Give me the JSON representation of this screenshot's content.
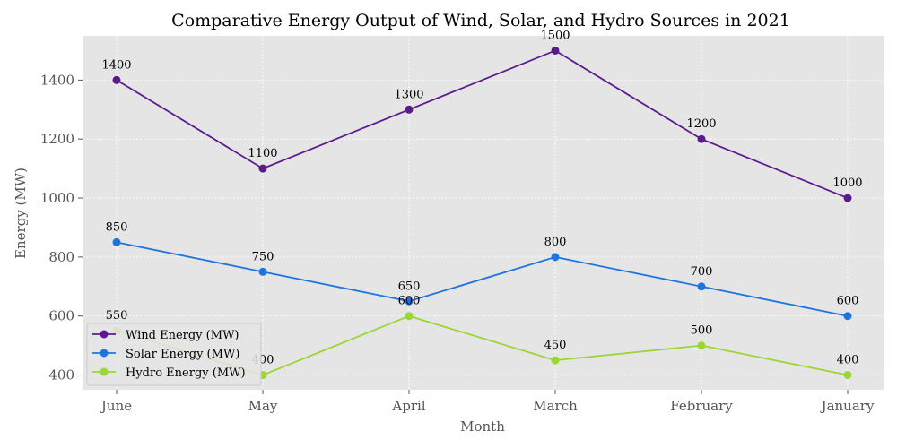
{
  "chart_data": {
    "type": "line",
    "title": "Comparative Energy Output of Wind, Solar, and Hydro Sources in 2021",
    "xlabel": "Month",
    "ylabel": "Energy (MW)",
    "categories": [
      "June",
      "May",
      "April",
      "March",
      "February",
      "January"
    ],
    "ylim": [
      350,
      1550
    ],
    "yticks": [
      400,
      600,
      800,
      1000,
      1200,
      1400
    ],
    "grid": true,
    "legend_position": "lower-left",
    "series": [
      {
        "name": "Wind Energy (MW)",
        "color": "#5c1a8e",
        "values": [
          1400,
          1100,
          1300,
          1500,
          1200,
          1000
        ]
      },
      {
        "name": "Solar Energy (MW)",
        "color": "#1f74e0",
        "values": [
          850,
          750,
          650,
          800,
          700,
          600
        ]
      },
      {
        "name": "Hydro Energy (MW)",
        "color": "#9ad634",
        "values": [
          550,
          400,
          600,
          450,
          500,
          400
        ]
      }
    ],
    "background_color": "#e5e5e5",
    "grid_color": "#ffffff"
  }
}
